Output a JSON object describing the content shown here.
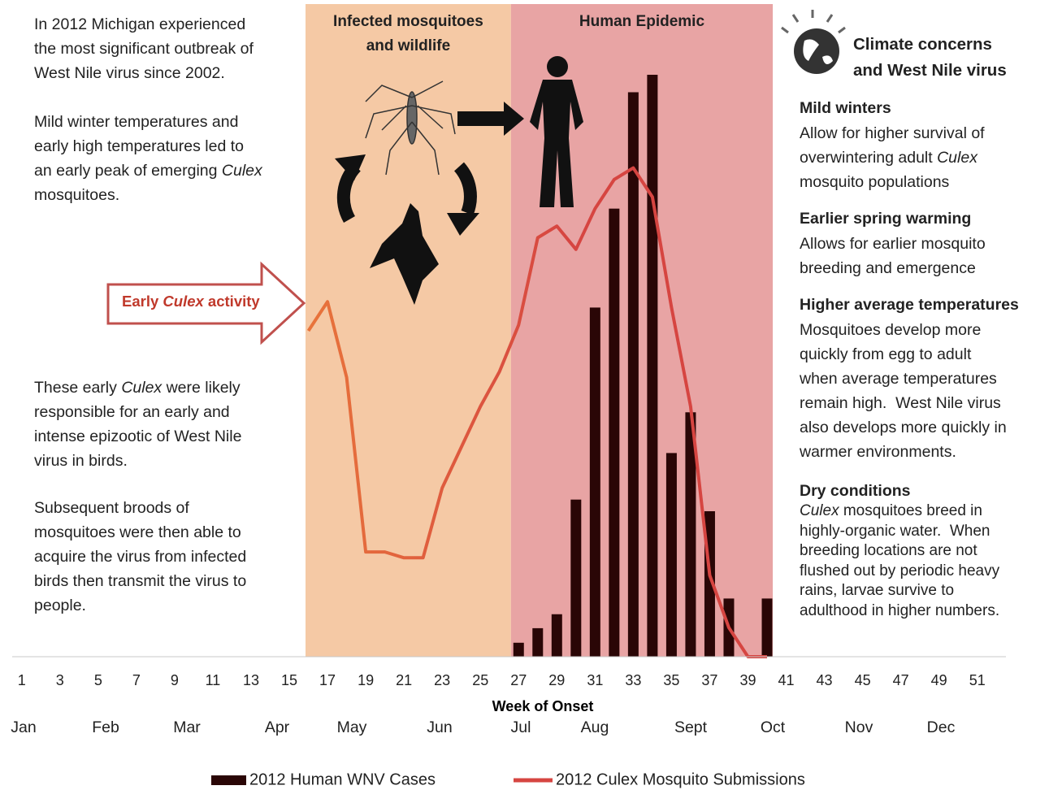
{
  "chart_data": {
    "type": "bar",
    "xlabel": "Week of Onset",
    "xlim": [
      0.5,
      52.5
    ],
    "ylim": [
      0,
      100
    ],
    "y2lim": [
      0,
      100
    ],
    "xticks": [
      1,
      3,
      5,
      7,
      9,
      11,
      13,
      15,
      17,
      19,
      21,
      23,
      25,
      27,
      29,
      31,
      33,
      35,
      37,
      39,
      41,
      43,
      45,
      47,
      49,
      51
    ],
    "months": [
      "Jan",
      "Feb",
      "Mar",
      "Apr",
      "May",
      "Jun",
      "Jul",
      "Aug",
      "Sept",
      "Oct",
      "Nov",
      "Dec"
    ],
    "regions": [
      {
        "lines": [
          "Infected mosquitoes",
          "and wildlife"
        ],
        "color": "#f5c9a5",
        "xlim": [
          15.85,
          26.6
        ]
      },
      {
        "lines": [
          "Human Epidemic"
        ],
        "color": "#e8a4a4",
        "xlim": [
          26.6,
          40.3
        ]
      }
    ],
    "series": [
      {
        "name": "2012 Human WNV Cases",
        "type": "bar",
        "color": "#2a0606",
        "x": [
          27,
          28,
          29,
          30,
          31,
          32,
          33,
          34,
          35,
          36,
          37,
          38,
          39,
          40
        ],
        "values": [
          2.4,
          4.9,
          7.3,
          27,
          60,
          77,
          97,
          100,
          35,
          42,
          25,
          10,
          0,
          10
        ]
      },
      {
        "name": "2012 Culex Mosquito Submissions",
        "type": "line",
        "axis": "y2",
        "color": "#d64541",
        "x": [
          16,
          17,
          18,
          19,
          20,
          21,
          22,
          23,
          24,
          25,
          26,
          27,
          28,
          29,
          30,
          31,
          32,
          33,
          34,
          35,
          36,
          37,
          38,
          39,
          40
        ],
        "values": [
          56,
          61,
          48,
          18,
          18,
          17,
          17,
          29,
          36,
          43,
          49,
          57,
          72,
          74,
          70,
          77,
          82,
          84,
          79,
          60,
          43,
          14,
          5,
          0,
          0
        ]
      }
    ],
    "callout": [
      [
        "Early ",
        {
          "em": "Culex"
        },
        " activity"
      ]
    ]
  },
  "left_text": [
    {
      "lines": [
        [
          "In 2012 Michigan experienced"
        ],
        [
          "the most significant outbreak of"
        ],
        [
          "West Nile virus since 2002."
        ]
      ]
    },
    {
      "lines": [
        [
          "Mild winter temperatures and"
        ],
        [
          "early high temperatures led to"
        ],
        [
          "an early peak of emerging ",
          {
            "em": "Culex"
          }
        ],
        [
          "mosquitoes."
        ]
      ]
    },
    {
      "lines": [
        [
          "These early ",
          {
            "em": "Culex"
          },
          " were likely"
        ],
        [
          "responsible for an early and"
        ],
        [
          "intense epizootic of West Nile"
        ],
        [
          "virus in birds."
        ]
      ]
    },
    {
      "lines": [
        [
          "Subsequent broods of"
        ],
        [
          "mosquitoes were then able to"
        ],
        [
          "acquire the virus from infected"
        ],
        [
          "birds then transmit the virus to"
        ],
        [
          "people."
        ]
      ]
    }
  ],
  "right_panel": {
    "title": [
      "Climate concerns",
      "and West Nile virus"
    ],
    "sections": [
      {
        "heading": "Mild winters",
        "lines": [
          [
            "Allow for higher survival of"
          ],
          [
            "overwintering adult ",
            {
              "em": "Culex"
            }
          ],
          [
            "mosquito populations"
          ]
        ]
      },
      {
        "heading": "Earlier spring warming",
        "lines": [
          [
            "Allows for earlier mosquito"
          ],
          [
            "breeding and emergence"
          ]
        ]
      },
      {
        "heading": "Higher average temperatures",
        "lines": [
          [
            "Mosquitoes develop more"
          ],
          [
            "quickly from egg to adult"
          ],
          [
            "when average temperatures"
          ],
          [
            "remain high.  West Nile virus"
          ],
          [
            "also develops more quickly in"
          ],
          [
            "warmer environments."
          ]
        ]
      },
      {
        "heading": "Dry conditions",
        "lines": [
          [
            {
              "em": "Culex"
            },
            " mosquitoes breed in"
          ],
          [
            "highly-organic water.  When"
          ],
          [
            "breeding locations are not"
          ],
          [
            "flushed out by periodic heavy"
          ],
          [
            "rains, larvae survive to"
          ],
          [
            "adulthood in higher numbers."
          ]
        ]
      }
    ]
  }
}
